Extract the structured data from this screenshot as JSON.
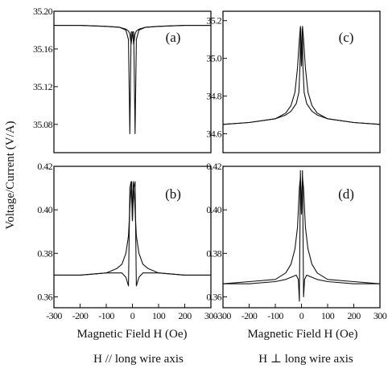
{
  "figure": {
    "ylabel": "Voltage/Current (V/A)",
    "xlabel_left": "Magnetic Field H (Oe)",
    "xlabel_right": "Magnetic Field H (Oe)",
    "caption_left": "H // long wire axis",
    "caption_right": "H ⊥ long wire axis"
  },
  "chart_data": [
    {
      "type": "line",
      "panel": "(a)",
      "xlabel": "Magnetic Field H (Oe)",
      "ylabel": "Voltage/Current (V/A)",
      "xlim": [
        -300,
        300
      ],
      "ylim": [
        35.05,
        35.2
      ],
      "yticks": [
        "35.20",
        "35.16",
        "35.12",
        "35.08"
      ],
      "ytick_values": [
        35.2,
        35.16,
        35.12,
        35.08
      ],
      "xticks": [],
      "series": [
        {
          "x": [
            -300,
            -200,
            -100,
            -50,
            -25,
            -15,
            -10,
            -5,
            0,
            5,
            10,
            15,
            25,
            50,
            100,
            200,
            300
          ],
          "y": [
            35.185,
            35.185,
            35.184,
            35.183,
            35.181,
            35.179,
            35.176,
            35.165,
            35.178,
            35.178,
            35.07,
            35.17,
            35.18,
            35.183,
            35.184,
            35.185,
            35.185
          ]
        },
        {
          "x": [
            -300,
            -200,
            -100,
            -50,
            -25,
            -15,
            -10,
            -5,
            0,
            5,
            10,
            15,
            25,
            50,
            100,
            200,
            300
          ],
          "y": [
            35.185,
            35.185,
            35.184,
            35.183,
            35.18,
            35.17,
            35.07,
            35.178,
            35.178,
            35.165,
            35.176,
            35.179,
            35.181,
            35.183,
            35.184,
            35.185,
            35.185
          ]
        }
      ]
    },
    {
      "type": "line",
      "panel": "(b)",
      "xlabel": "Magnetic Field H (Oe)",
      "ylabel": "Voltage/Current (V/A)",
      "xlim": [
        -300,
        300
      ],
      "ylim": [
        0.355,
        0.42
      ],
      "yticks": [
        "0.42",
        "0.40",
        "0.38",
        "0.36"
      ],
      "ytick_values": [
        0.42,
        0.4,
        0.38,
        0.36
      ],
      "xticks": [
        "-300",
        "-200",
        "-100",
        "0",
        "100",
        "200",
        "300"
      ],
      "xtick_values": [
        -300,
        -200,
        -100,
        0,
        100,
        200,
        300
      ],
      "series": [
        {
          "x": [
            -300,
            -200,
            -100,
            -60,
            -40,
            -25,
            -15,
            -8,
            -3,
            0,
            5,
            10,
            15,
            25,
            40,
            60,
            100,
            200,
            300
          ],
          "y": [
            0.37,
            0.37,
            0.371,
            0.373,
            0.375,
            0.38,
            0.388,
            0.405,
            0.413,
            0.395,
            0.41,
            0.413,
            0.365,
            0.369,
            0.371,
            0.371,
            0.371,
            0.37,
            0.37
          ]
        },
        {
          "x": [
            -300,
            -200,
            -100,
            -60,
            -40,
            -25,
            -15,
            -10,
            -5,
            0,
            3,
            8,
            15,
            25,
            40,
            60,
            100,
            200,
            300
          ],
          "y": [
            0.37,
            0.37,
            0.371,
            0.371,
            0.371,
            0.369,
            0.365,
            0.41,
            0.413,
            0.395,
            0.413,
            0.405,
            0.388,
            0.38,
            0.375,
            0.373,
            0.371,
            0.37,
            0.37
          ]
        }
      ]
    },
    {
      "type": "line",
      "panel": "(c)",
      "xlabel": "Magnetic Field H (Oe)",
      "ylabel": "Voltage/Current (V/A)",
      "xlim": [
        -300,
        300
      ],
      "ylim": [
        34.5,
        35.25
      ],
      "yticks": [
        "35.2",
        "35.0",
        "34.8",
        "34.6"
      ],
      "ytick_values": [
        35.2,
        35.0,
        34.8,
        34.6
      ],
      "xticks": [],
      "series": [
        {
          "x": [
            -300,
            -200,
            -100,
            -60,
            -40,
            -25,
            -15,
            -8,
            -4,
            0,
            3,
            6,
            10,
            20,
            40,
            60,
            100,
            200,
            300
          ],
          "y": [
            34.65,
            34.66,
            34.68,
            34.71,
            34.75,
            34.82,
            34.95,
            35.1,
            35.17,
            34.96,
            35.16,
            34.95,
            34.82,
            34.76,
            34.72,
            34.7,
            34.68,
            34.66,
            34.65
          ]
        },
        {
          "x": [
            -300,
            -200,
            -100,
            -60,
            -40,
            -20,
            -10,
            -6,
            -3,
            0,
            4,
            8,
            15,
            25,
            40,
            60,
            100,
            200,
            300
          ],
          "y": [
            34.65,
            34.66,
            34.68,
            34.7,
            34.72,
            34.76,
            34.82,
            34.95,
            35.16,
            34.96,
            35.17,
            35.1,
            34.95,
            34.82,
            34.75,
            34.71,
            34.68,
            34.66,
            34.65
          ]
        }
      ]
    },
    {
      "type": "line",
      "panel": "(d)",
      "xlabel": "Magnetic Field H (Oe)",
      "ylabel": "Voltage/Current (V/A)",
      "xlim": [
        -300,
        300
      ],
      "ylim": [
        0.355,
        0.42
      ],
      "yticks": [
        "0.42",
        "0.40",
        "0.38",
        "0.36"
      ],
      "ytick_values": [
        0.42,
        0.4,
        0.38,
        0.36
      ],
      "xticks": [
        "-300",
        "-200",
        "-100",
        "0",
        "100",
        "200",
        "300"
      ],
      "xtick_values": [
        -300,
        -200,
        -100,
        0,
        100,
        200,
        300
      ],
      "series": [
        {
          "x": [
            -300,
            -200,
            -100,
            -60,
            -40,
            -25,
            -15,
            -8,
            -4,
            0,
            4,
            8,
            12,
            20,
            40,
            60,
            100,
            200,
            300
          ],
          "y": [
            0.366,
            0.367,
            0.368,
            0.371,
            0.375,
            0.382,
            0.392,
            0.41,
            0.415,
            0.398,
            0.418,
            0.36,
            0.368,
            0.37,
            0.369,
            0.368,
            0.367,
            0.366,
            0.366
          ]
        },
        {
          "x": [
            -300,
            -200,
            -100,
            -60,
            -40,
            -20,
            -12,
            -8,
            -4,
            0,
            4,
            8,
            15,
            25,
            40,
            60,
            100,
            200,
            300
          ],
          "y": [
            0.366,
            0.366,
            0.367,
            0.368,
            0.369,
            0.37,
            0.368,
            0.358,
            0.418,
            0.398,
            0.415,
            0.41,
            0.392,
            0.382,
            0.375,
            0.371,
            0.368,
            0.367,
            0.366
          ]
        }
      ]
    }
  ]
}
